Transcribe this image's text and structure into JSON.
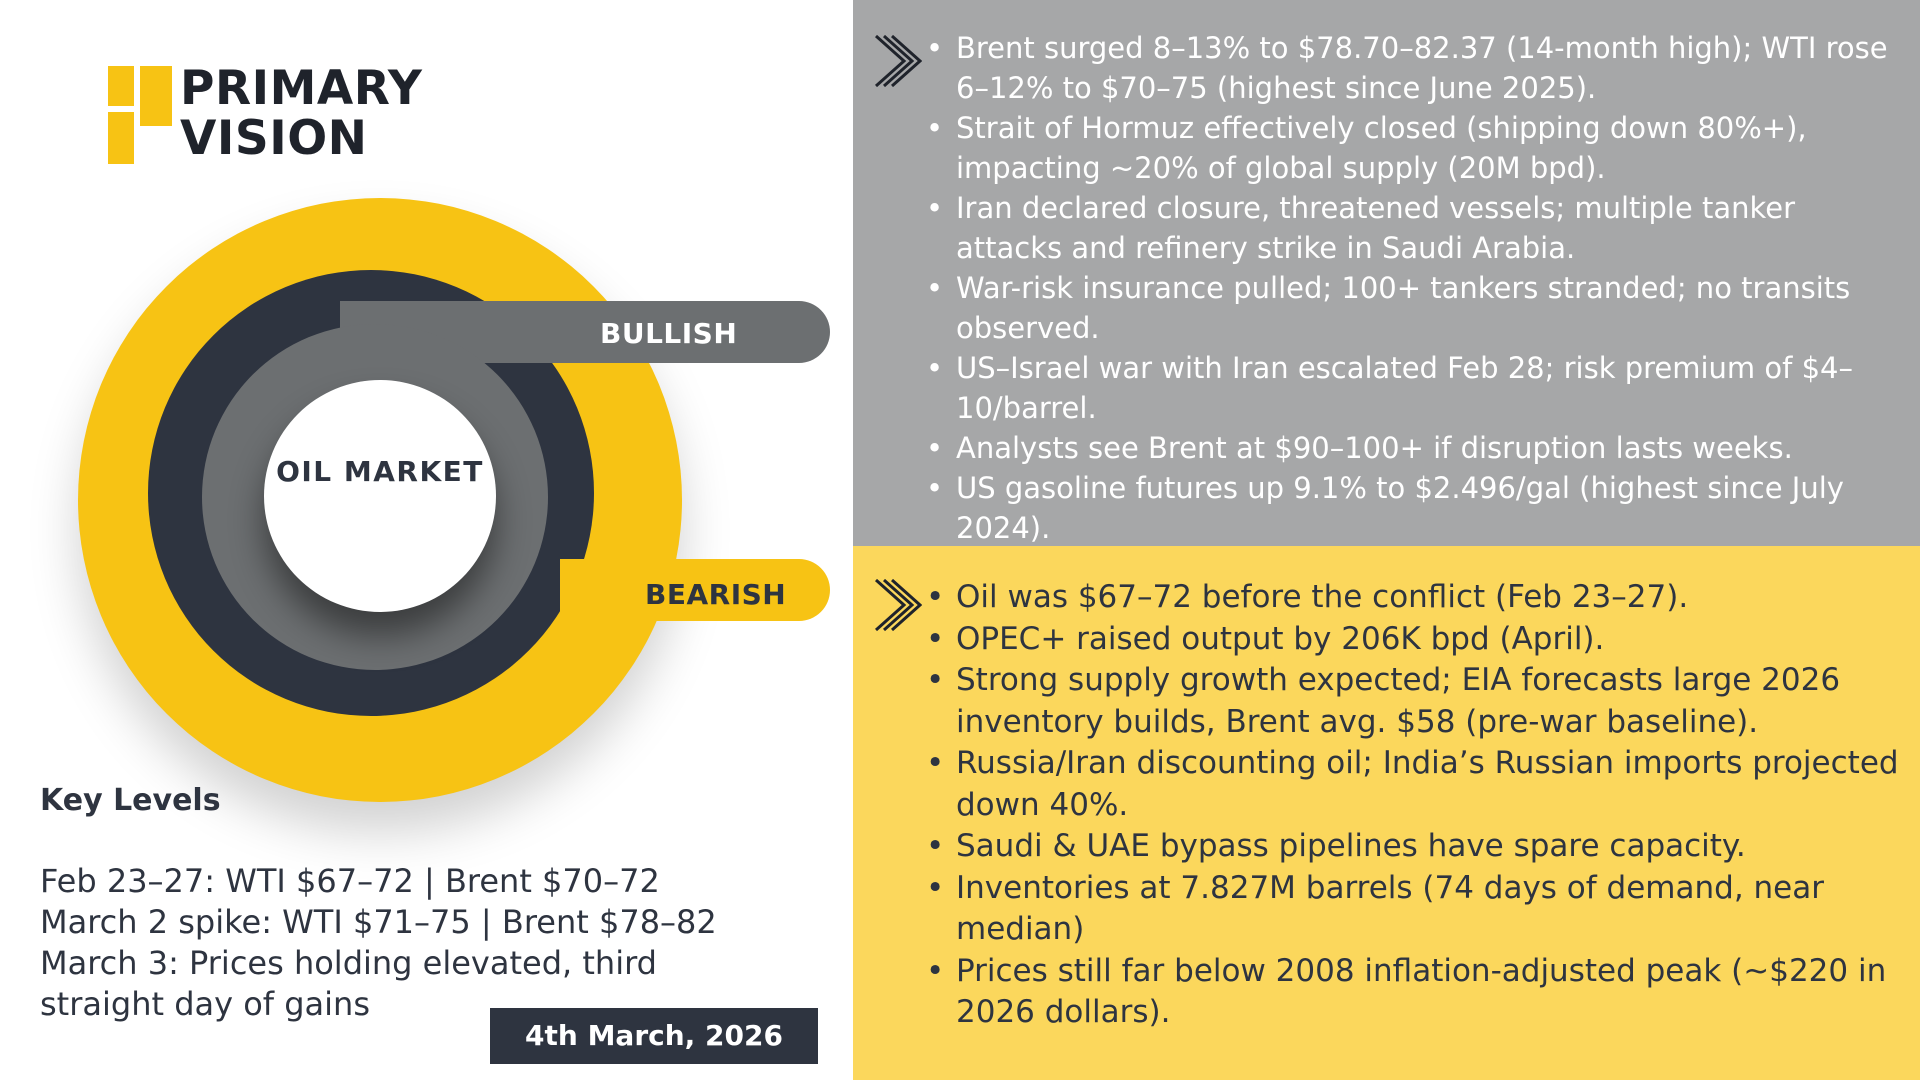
{
  "brand": {
    "line1": "PRIMARY",
    "line2": "VISION"
  },
  "diagram": {
    "center_label": "OIL MARKET",
    "bullish_label": "BULLISH",
    "bearish_label": "BEARISH"
  },
  "key_levels": {
    "title": "Key Levels",
    "lines": [
      "Feb 23–27: WTI $67–72 | Brent $70–72",
      "March 2 spike: WTI $71–75 | Brent $78–82",
      "March 3: Prices holding elevated, third straight day of gains"
    ]
  },
  "date": "4th March, 2026",
  "bullish_points": [
    "Brent surged 8–13% to $78.70–82.37 (14-month high); WTI rose 6–12% to $70–75 (highest since June 2025).",
    "Strait of Hormuz effectively closed (shipping down 80%+), impacting ~20% of global supply (20M bpd).",
    "Iran declared closure, threatened vessels; multiple tanker attacks and refinery strike in Saudi Arabia.",
    "War-risk insurance pulled; 100+ tankers stranded; no transits observed.",
    "US–Israel war with Iran escalated Feb 28; risk premium of $4–10/barrel.",
    "Analysts see Brent at $90–100+ if disruption lasts weeks.",
    "US gasoline futures up 9.1% to $2.496/gal (highest since July 2024)."
  ],
  "bearish_points": [
    "Oil was $67–72 before the conflict (Feb 23–27).",
    "OPEC+ raised output by 206K bpd (April).",
    "Strong supply growth expected; EIA forecasts large 2026 inventory builds, Brent avg. $58 (pre-war baseline).",
    "Russia/Iran discounting oil; India’s Russian imports projected down 40%.",
    "Saudi & UAE bypass pipelines have spare capacity.",
    "Inventories at 7.827M barrels (74 days of demand, near median)",
    "Prices still far below 2008 inflation-adjusted peak (~$220 in 2026 dollars)."
  ],
  "colors": {
    "yellow": "#f7c314",
    "navy": "#2e3440",
    "gray": "#6c6f71",
    "panel_gray": "#a6a7a8",
    "panel_yellow": "#fbd75c"
  }
}
